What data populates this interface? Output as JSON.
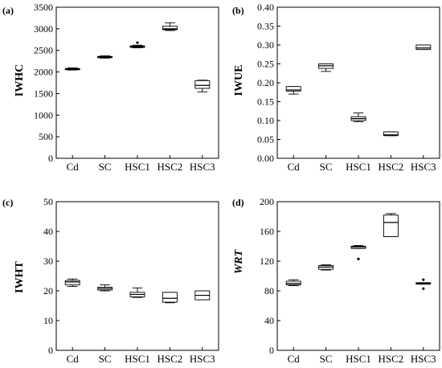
{
  "chart_data": [
    {
      "type": "box",
      "panel_label": "(a)",
      "ylabel": "IWHC",
      "ylabel_italic": false,
      "ylim": [
        0,
        3500
      ],
      "yticks": [
        0,
        500,
        1000,
        1500,
        2000,
        2500,
        3000,
        3500
      ],
      "ytick_labels": [
        "0",
        "500",
        "1000",
        "1500",
        "2000",
        "2500",
        "3000",
        "3500"
      ],
      "categories": [
        "Cd",
        "SC",
        "HSC1",
        "HSC2",
        "HSC3"
      ],
      "boxes": [
        {
          "min": 2045,
          "q1": 2055,
          "median": 2065,
          "q3": 2080,
          "max": 2095,
          "outliers": []
        },
        {
          "min": 2320,
          "q1": 2330,
          "median": 2345,
          "q3": 2360,
          "max": 2375,
          "outliers": []
        },
        {
          "min": 2560,
          "q1": 2570,
          "median": 2590,
          "q3": 2605,
          "max": 2620,
          "outliers": [
            2680
          ]
        },
        {
          "min": 2960,
          "q1": 2980,
          "median": 3000,
          "q3": 3060,
          "max": 3140,
          "outliers": []
        },
        {
          "min": 1540,
          "q1": 1620,
          "median": 1690,
          "q3": 1800,
          "max": 1810,
          "outliers": []
        }
      ]
    },
    {
      "type": "box",
      "panel_label": "(b)",
      "ylabel": "IWUE",
      "ylabel_italic": false,
      "ylim": [
        0,
        0.4
      ],
      "yticks": [
        0,
        0.05,
        0.1,
        0.15,
        0.2,
        0.25,
        0.3,
        0.35,
        0.4
      ],
      "ytick_labels": [
        "0.00",
        "0.05",
        "0.10",
        "0.15",
        "0.20",
        "0.25",
        "0.30",
        "0.35",
        "0.40"
      ],
      "categories": [
        "Cd",
        "SC",
        "HSC1",
        "HSC2",
        "HSC3"
      ],
      "boxes": [
        {
          "min": 0.17,
          "q1": 0.178,
          "median": 0.181,
          "q3": 0.19,
          "max": 0.19,
          "outliers": []
        },
        {
          "min": 0.23,
          "q1": 0.238,
          "median": 0.245,
          "q3": 0.25,
          "max": 0.25,
          "outliers": []
        },
        {
          "min": 0.097,
          "q1": 0.1,
          "median": 0.105,
          "q3": 0.11,
          "max": 0.12,
          "outliers": []
        },
        {
          "min": 0.06,
          "q1": 0.06,
          "median": 0.062,
          "q3": 0.07,
          "max": 0.07,
          "outliers": []
        },
        {
          "min": 0.288,
          "q1": 0.288,
          "median": 0.292,
          "q3": 0.3,
          "max": 0.3,
          "outliers": []
        }
      ]
    },
    {
      "type": "box",
      "panel_label": "(c)",
      "ylabel": "IWHT",
      "ylabel_italic": false,
      "ylim": [
        0,
        50
      ],
      "yticks": [
        0,
        10,
        20,
        30,
        40,
        50
      ],
      "ytick_labels": [
        "0",
        "10",
        "20",
        "30",
        "40",
        "50"
      ],
      "categories": [
        "Cd",
        "SC",
        "HSC1",
        "HSC2",
        "HSC3"
      ],
      "boxes": [
        {
          "min": 21.5,
          "q1": 22.0,
          "median": 23.0,
          "q3": 23.5,
          "max": 24.0,
          "outliers": []
        },
        {
          "min": 20.0,
          "q1": 20.3,
          "median": 20.8,
          "q3": 21.2,
          "max": 22.0,
          "outliers": []
        },
        {
          "min": 17.8,
          "q1": 18.0,
          "median": 18.8,
          "q3": 19.5,
          "max": 21.0,
          "outliers": []
        },
        {
          "min": 16.0,
          "q1": 16.2,
          "median": 17.5,
          "q3": 19.5,
          "max": 19.5,
          "outliers": []
        },
        {
          "min": 17.0,
          "q1": 17.0,
          "median": 18.5,
          "q3": 20.0,
          "max": 20.0,
          "outliers": []
        }
      ]
    },
    {
      "type": "box",
      "panel_label": "(d)",
      "ylabel": "WRT",
      "ylabel_italic": true,
      "ylim": [
        0,
        200
      ],
      "yticks": [
        0,
        40,
        80,
        120,
        160,
        200
      ],
      "ytick_labels": [
        "0",
        "40",
        "80",
        "120",
        "160",
        "200"
      ],
      "categories": [
        "Cd",
        "SC",
        "HSC1",
        "HSC2",
        "HSC3"
      ],
      "boxes": [
        {
          "min": 87,
          "q1": 88,
          "median": 90,
          "q3": 93,
          "max": 95,
          "outliers": []
        },
        {
          "min": 108,
          "q1": 109,
          "median": 112,
          "q3": 114,
          "max": 115,
          "outliers": []
        },
        {
          "min": 137,
          "q1": 137,
          "median": 139,
          "q3": 140,
          "max": 141,
          "outliers": [
            123
          ]
        },
        {
          "min": 153,
          "q1": 153,
          "median": 172,
          "q3": 182,
          "max": 184,
          "outliers": []
        },
        {
          "min": 89,
          "q1": 89,
          "median": 90,
          "q3": 91,
          "max": 91,
          "outliers": [
            83,
            95
          ]
        }
      ]
    }
  ]
}
